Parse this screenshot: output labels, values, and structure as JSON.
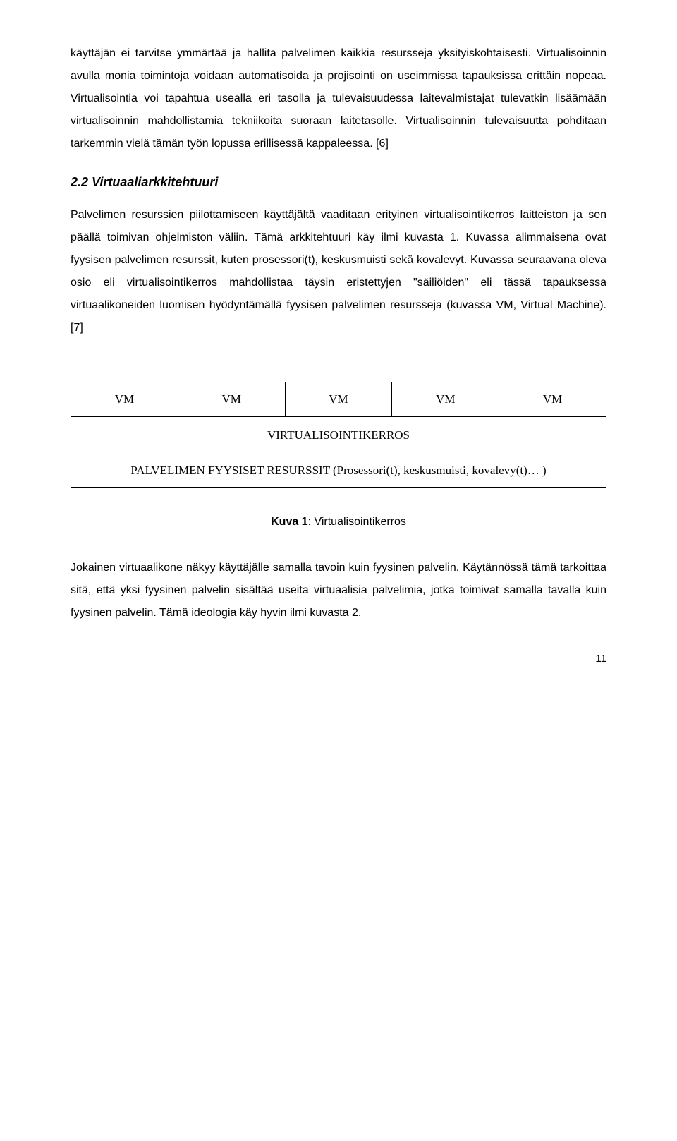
{
  "paragraphs": {
    "p1": "käyttäjän ei tarvitse ymmärtää ja hallita palvelimen kaikkia resursseja yksityiskohtaisesti. Virtualisoinnin avulla monia toimintoja voidaan automatisoida ja projisointi on useimmissa tapauksissa erittäin nopeaa. Virtualisointia voi tapahtua usealla eri tasolla ja tulevaisuudessa laitevalmistajat tulevatkin lisäämään virtualisoinnin mahdollistamia tekniikoita suoraan laitetasolle. Virtualisoinnin tulevaisuutta pohditaan tarkemmin vielä tämän työn lopussa erillisessä kappaleessa. [6]",
    "p2": "Palvelimen resurssien piilottamiseen käyttäjältä vaaditaan erityinen virtualisointikerros laitteiston ja sen päällä toimivan ohjelmiston väliin. Tämä arkkitehtuuri käy ilmi kuvasta 1. Kuvassa alimmaisena ovat fyysisen palvelimen resurssit, kuten prosessori(t), keskusmuisti sekä kovalevyt. Kuvassa seuraavana oleva osio eli virtualisointikerros mahdollistaa täysin eristettyjen \"säiliöiden\" eli tässä tapauksessa virtuaalikoneiden luomisen hyödyntämällä fyysisen palvelimen resursseja (kuvassa VM, Virtual Machine). [7]",
    "p3": "Jokainen virtuaalikone näkyy käyttäjälle samalla tavoin kuin fyysinen palvelin. Käytännössä tämä tarkoittaa sitä, että yksi fyysinen palvelin sisältää useita virtuaalisia palvelimia, jotka toimivat samalla tavalla kuin fyysinen palvelin. Tämä ideologia käy hyvin ilmi kuvasta 2."
  },
  "section": {
    "heading": "2.2 Virtuaaliarkkitehtuuri"
  },
  "figure": {
    "vm_labels": [
      "VM",
      "VM",
      "VM",
      "VM",
      "VM"
    ],
    "layer_label": "VIRTUALISOINTIKERROS",
    "physical_label": "PALVELIMEN FYYSISET RESURSSIT (Prosessori(t), keskusmuisti, kovalevy(t)… )",
    "caption_bold": "Kuva 1",
    "caption_rest": ": Virtualisointikerros"
  },
  "page_number": "11"
}
